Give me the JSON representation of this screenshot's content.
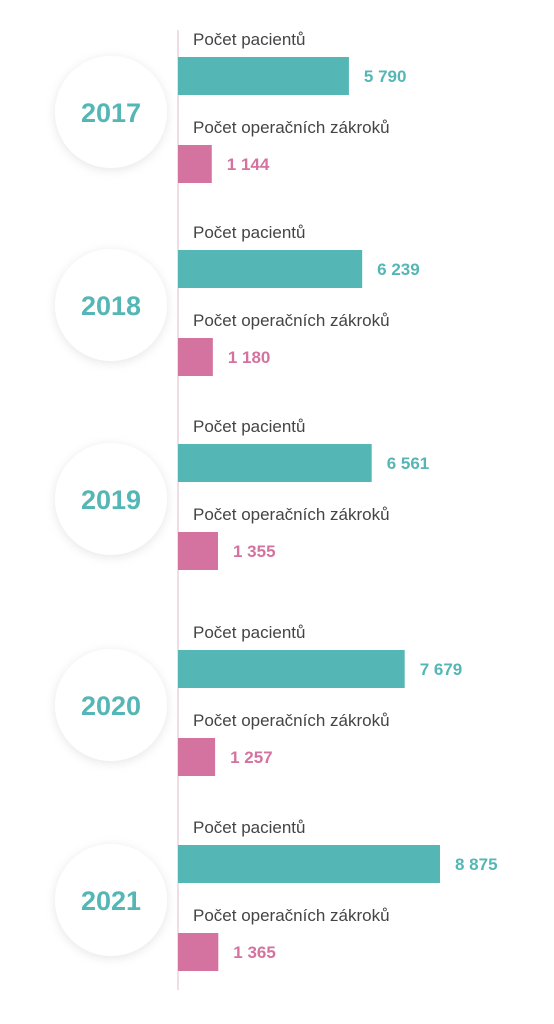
{
  "chart_data": {
    "type": "bar",
    "orientation": "horizontal",
    "categories": [
      "2017",
      "2018",
      "2019",
      "2020",
      "2021"
    ],
    "series": [
      {
        "name": "Počet pacientů",
        "values": [
          5790,
          6239,
          6561,
          7679,
          8875
        ],
        "labels": [
          "5 790",
          "6 239",
          "6 561",
          "7 679",
          "8 875"
        ],
        "color": "#54b7b5"
      },
      {
        "name": "Počet operačních zákroků",
        "values": [
          1144,
          1180,
          1355,
          1257,
          1365
        ],
        "labels": [
          "1 144",
          "1 180",
          "1 355",
          "1 257",
          "1 365"
        ],
        "color": "#d4739f"
      }
    ],
    "year_color": "#54b7b5",
    "timeline_color": "#f1dde6",
    "grid": false
  }
}
